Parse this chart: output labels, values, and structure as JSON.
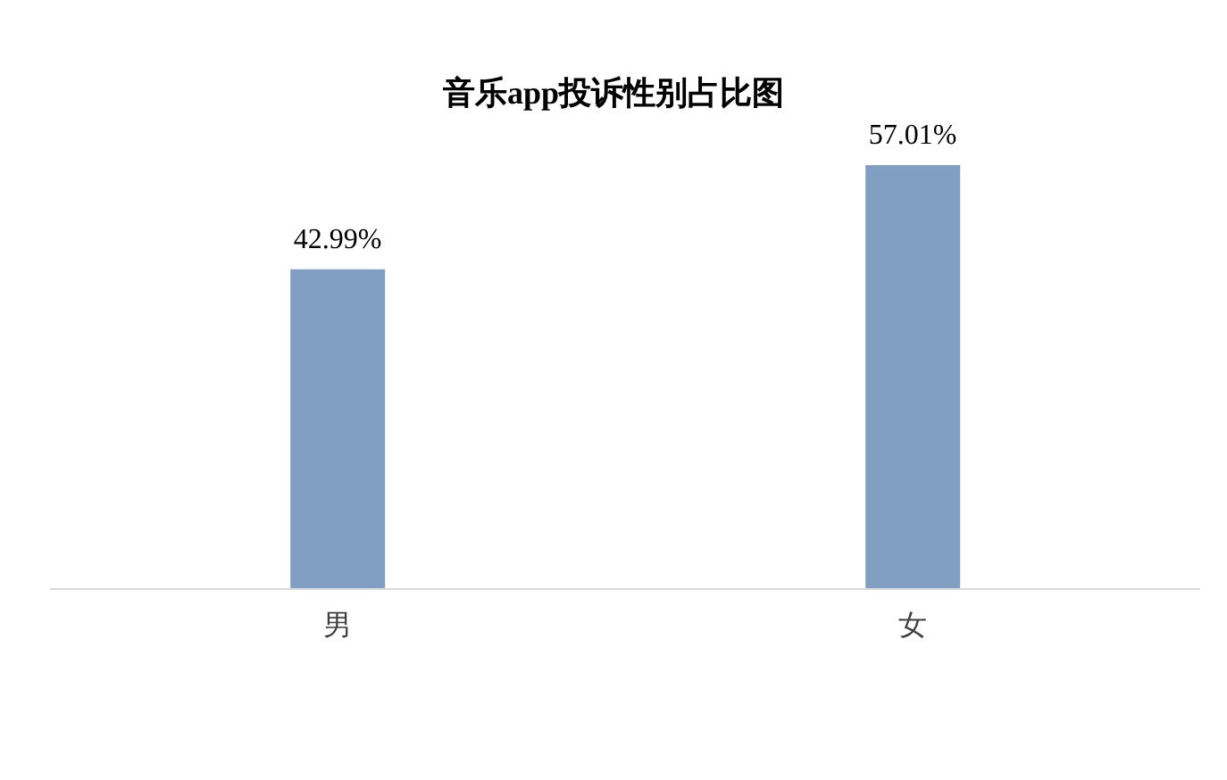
{
  "chart_data": {
    "type": "bar",
    "title": "音乐app投诉性别占比图",
    "categories": [
      "男",
      "女"
    ],
    "values": [
      42.99,
      57.01
    ],
    "color": "#809fc3",
    "value_labels": [
      "42.99%",
      "57.01%"
    ]
  }
}
